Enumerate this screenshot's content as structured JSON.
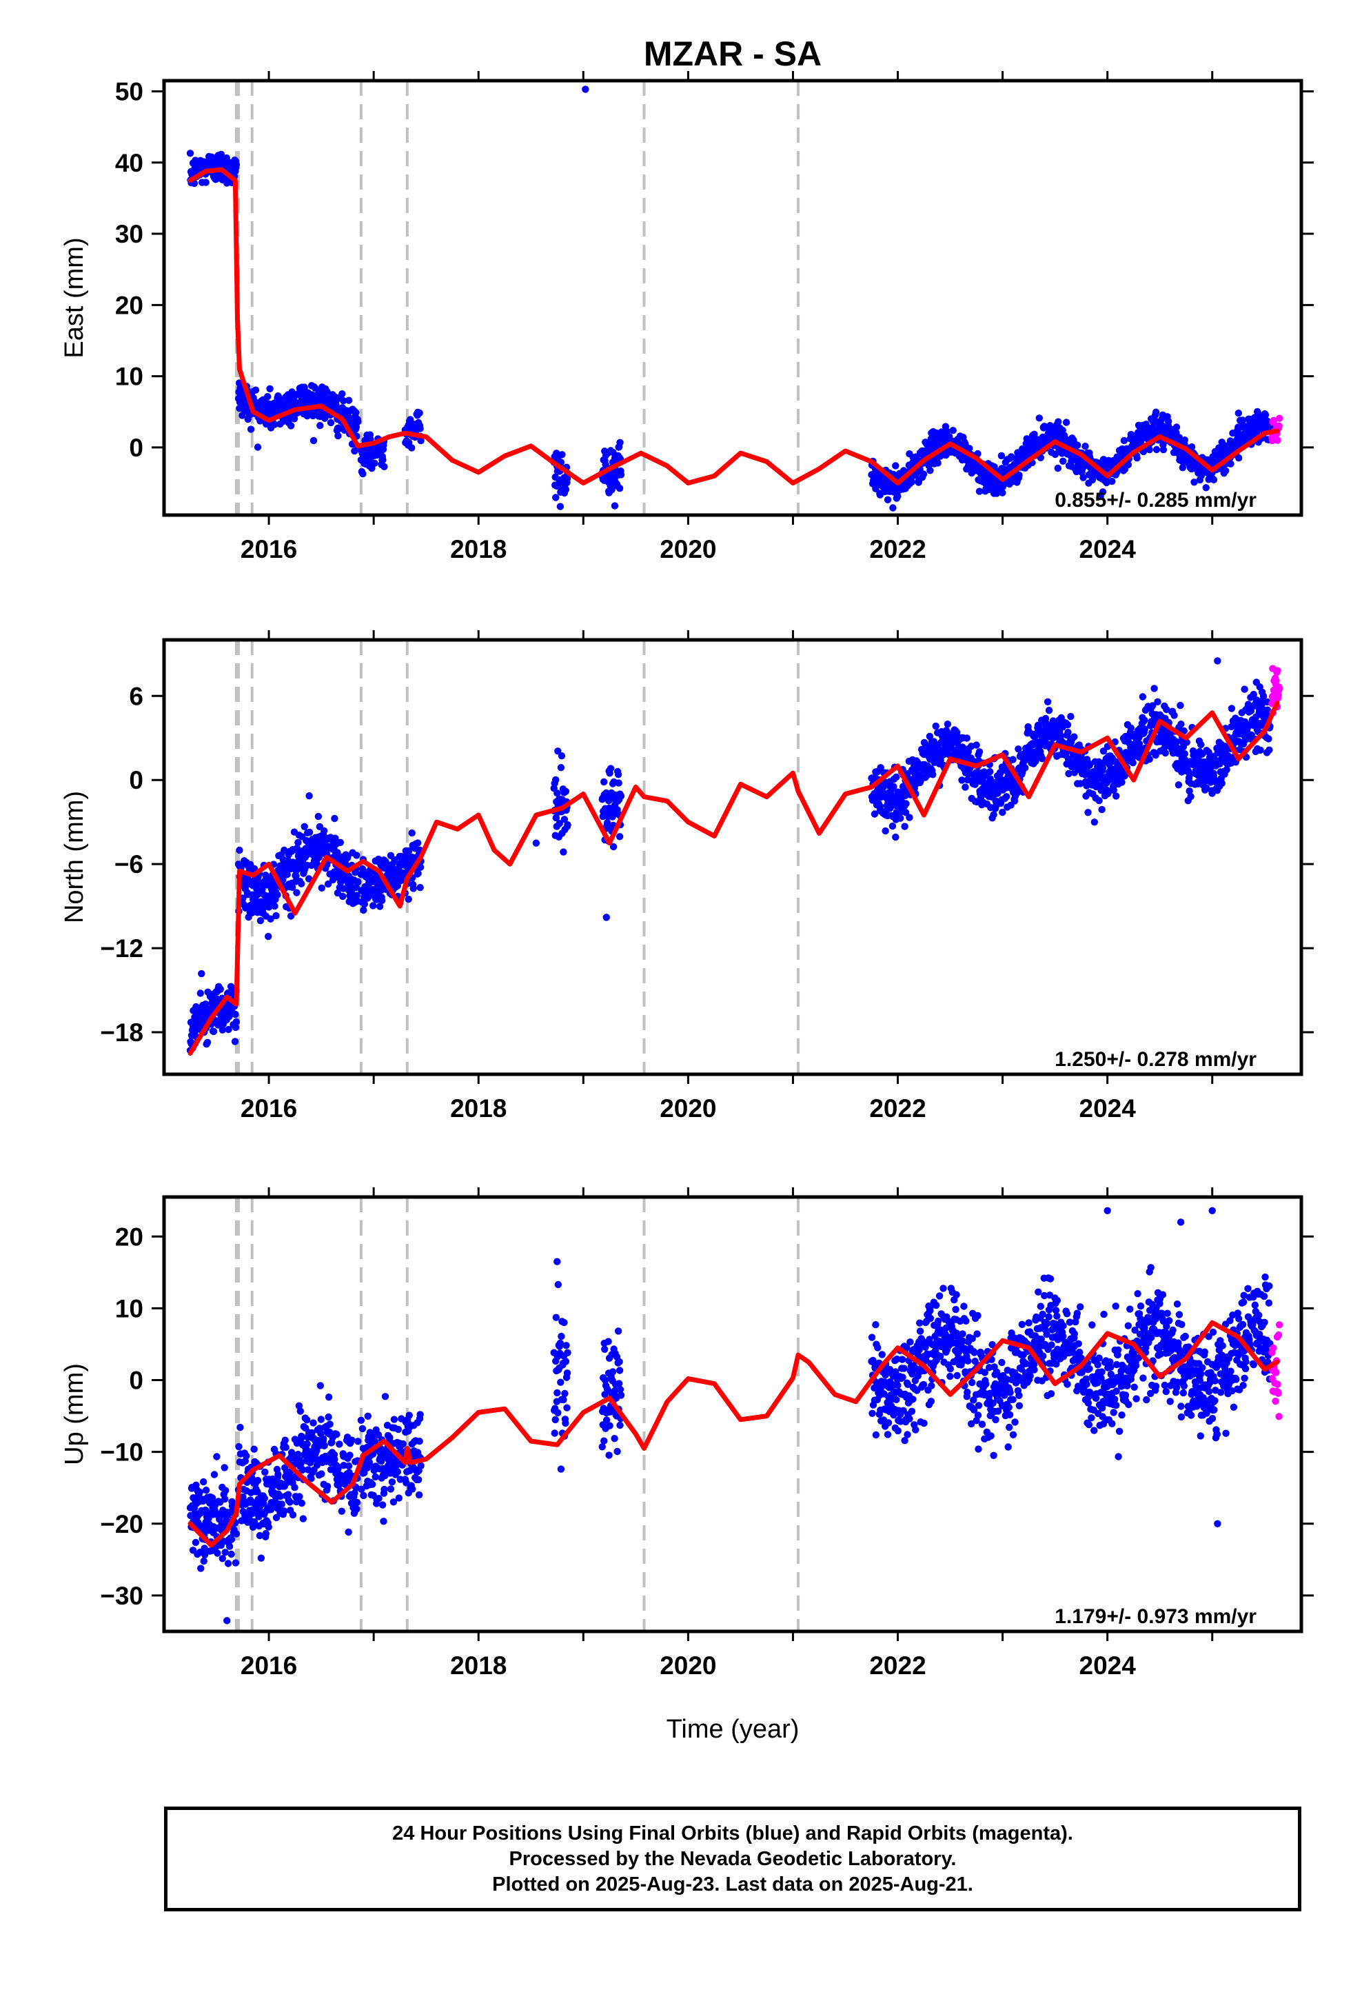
{
  "title": "MZAR - SA",
  "xlabel": "Time (year)",
  "colors": {
    "final": "#0000ff",
    "rapid": "#ff00ff",
    "model": "#ff0000",
    "breaks": "#c0c0c0"
  },
  "footer": {
    "line1": "24 Hour Positions Using Final Orbits (blue) and Rapid Orbits (magenta).",
    "line2": "Processed by the Nevada Geodetic Laboratory.",
    "line3": "Plotted on 2025-Aug-23. Last data on 2025-Aug-21."
  },
  "chart_data": [
    {
      "type": "scatter",
      "component": "east",
      "ylabel": "East (mm)",
      "xlim": [
        2015.0,
        2025.85
      ],
      "ylim": [
        -9.5,
        51.5
      ],
      "yticks": [
        0,
        10,
        20,
        30,
        40,
        50
      ],
      "xticks": [
        2016,
        2018,
        2020,
        2022,
        2024
      ],
      "rate_label": "0.855+/- 0.285 mm/yr",
      "break_lines": [
        2015.69,
        2015.71,
        2015.84,
        2016.88,
        2017.32,
        2019.58,
        2021.05
      ],
      "model_line": {
        "name": "model",
        "x": [
          2015.25,
          2015.4,
          2015.55,
          2015.68,
          2015.7,
          2015.72,
          2015.85,
          2016.0,
          2016.25,
          2016.5,
          2016.7,
          2016.85,
          2017.0,
          2017.15,
          2017.3,
          2017.5,
          2017.75,
          2018.0,
          2018.25,
          2018.5,
          2018.75,
          2019.0,
          2019.25,
          2019.55,
          2019.8,
          2020.0,
          2020.25,
          2020.5,
          2020.75,
          2021.0,
          2021.25,
          2021.5,
          2021.75,
          2022.0,
          2022.25,
          2022.5,
          2022.75,
          2023.0,
          2023.25,
          2023.5,
          2023.75,
          2024.0,
          2024.25,
          2024.5,
          2024.75,
          2025.0,
          2025.25,
          2025.5,
          2025.62
        ],
        "y": [
          37.5,
          38.8,
          39.0,
          37.5,
          18.0,
          11.0,
          5.0,
          3.8,
          5.3,
          5.8,
          4.0,
          0.2,
          0.6,
          1.5,
          2.0,
          1.5,
          -1.8,
          -3.5,
          -1.2,
          0.2,
          -2.5,
          -5.0,
          -3.0,
          -0.8,
          -2.6,
          -5.0,
          -4.0,
          -0.8,
          -2.0,
          -5.0,
          -3.0,
          -0.5,
          -2.0,
          -5.0,
          -1.8,
          0.5,
          -1.5,
          -4.5,
          -1.8,
          0.8,
          -1.0,
          -4.0,
          -0.7,
          1.5,
          -0.2,
          -3.2,
          -0.5,
          2.0,
          2.3
        ]
      },
      "final_segments": [
        {
          "x0": 2015.25,
          "x1": 2015.69,
          "center": 38.5,
          "amp": 1.0,
          "noise": 1.2,
          "start": 37.5,
          "end": 39.0
        },
        {
          "x0": 2015.71,
          "x1": 2016.85,
          "center": 4.5,
          "amp": 1.5,
          "noise": 1.5,
          "start": 10.5,
          "end": 3.0
        },
        {
          "x0": 2016.88,
          "x1": 2017.1,
          "center": -0.5,
          "amp": 0.5,
          "noise": 1.3,
          "start": -1.0,
          "end": 0.5
        },
        {
          "x0": 2017.3,
          "x1": 2017.45,
          "center": 2.3,
          "amp": 0.5,
          "noise": 1.2,
          "start": 2.3,
          "end": 2.0
        },
        {
          "x0": 2018.72,
          "x1": 2018.85,
          "center": -3.0,
          "amp": 1.0,
          "noise": 2.0,
          "start": -2.0,
          "end": -4.0
        },
        {
          "x0": 2019.18,
          "x1": 2019.36,
          "center": -3.5,
          "amp": 1.0,
          "noise": 1.7,
          "start": -3.0,
          "end": -4.0
        },
        {
          "x0": 2021.75,
          "x1": 2025.55,
          "center": -1.0,
          "amp": 2.8,
          "noise": 1.2,
          "start": -4.5,
          "end": 2.0
        }
      ],
      "outliers": [
        {
          "x": 2019.02,
          "y": 50.3
        },
        {
          "x": 2018.78,
          "y": -8.3
        },
        {
          "x": 2019.3,
          "y": -8.2
        }
      ],
      "rapid_points": {
        "x0": 2025.57,
        "x1": 2025.64,
        "center": 2.5,
        "noise": 1.2
      }
    },
    {
      "type": "scatter",
      "component": "north",
      "ylabel": "North (mm)",
      "xlim": [
        2015.0,
        2025.85
      ],
      "ylim": [
        -21.0,
        10.0
      ],
      "yticks": [
        -18,
        -12,
        -6,
        0,
        6
      ],
      "xticks": [
        2016,
        2018,
        2020,
        2022,
        2024
      ],
      "rate_label": "1.250+/- 0.278 mm/yr",
      "break_lines": [
        2015.69,
        2015.71,
        2015.84,
        2016.88,
        2017.32,
        2019.58,
        2021.05
      ],
      "model_line": {
        "name": "model",
        "x": [
          2015.25,
          2015.45,
          2015.6,
          2015.69,
          2015.72,
          2015.85,
          2016.0,
          2016.25,
          2016.55,
          2016.75,
          2016.9,
          2017.05,
          2017.25,
          2017.32,
          2017.45,
          2017.6,
          2017.8,
          2018.0,
          2018.15,
          2018.3,
          2018.55,
          2018.8,
          2019.0,
          2019.25,
          2019.5,
          2019.58,
          2019.8,
          2020.0,
          2020.25,
          2020.5,
          2020.75,
          2021.0,
          2021.05,
          2021.25,
          2021.5,
          2021.75,
          2022.0,
          2022.25,
          2022.5,
          2022.75,
          2023.0,
          2023.25,
          2023.5,
          2023.75,
          2024.0,
          2024.25,
          2024.5,
          2024.75,
          2025.0,
          2025.25,
          2025.5,
          2025.62
        ],
        "y": [
          -19.5,
          -17.0,
          -15.5,
          -16.0,
          -6.5,
          -6.8,
          -6.0,
          -9.5,
          -5.5,
          -6.5,
          -5.8,
          -6.5,
          -9.0,
          -7.0,
          -5.5,
          -3.0,
          -3.5,
          -2.5,
          -5.0,
          -6.0,
          -2.5,
          -2.0,
          -1.0,
          -4.5,
          -0.5,
          -1.2,
          -1.5,
          -3.0,
          -4.0,
          -0.3,
          -1.2,
          0.5,
          -0.8,
          -3.8,
          -1.0,
          -0.5,
          1.0,
          -2.5,
          1.5,
          1.0,
          1.8,
          -1.2,
          2.5,
          2.0,
          3.0,
          0.0,
          4.2,
          3.0,
          4.8,
          1.5,
          3.5,
          5.5
        ]
      },
      "final_segments": [
        {
          "x0": 2015.25,
          "x1": 2015.69,
          "center": -17.0,
          "amp": 1.0,
          "noise": 1.0,
          "start": -19.5,
          "end": -16.0
        },
        {
          "x0": 2015.71,
          "x1": 2016.85,
          "center": -7.0,
          "amp": 1.6,
          "noise": 1.1,
          "start": -6.5,
          "end": -6.0
        },
        {
          "x0": 2016.88,
          "x1": 2017.28,
          "center": -6.5,
          "amp": 1.0,
          "noise": 1.0,
          "start": -6.0,
          "end": -8.0
        },
        {
          "x0": 2017.3,
          "x1": 2017.45,
          "center": -6.5,
          "amp": 0.5,
          "noise": 1.2,
          "start": -8.0,
          "end": -5.5
        },
        {
          "x0": 2018.72,
          "x1": 2018.85,
          "center": -1.5,
          "amp": 0.8,
          "noise": 1.5,
          "start": -2.5,
          "end": -1.5
        },
        {
          "x0": 2019.18,
          "x1": 2019.36,
          "center": -2.0,
          "amp": 1.0,
          "noise": 1.6,
          "start": -2.0,
          "end": -3.0
        },
        {
          "x0": 2021.75,
          "x1": 2025.55,
          "center": 1.0,
          "amp": 1.8,
          "noise": 1.1,
          "start": -0.5,
          "end": 4.5
        }
      ],
      "outliers": [
        {
          "x": 2019.22,
          "y": -9.8
        },
        {
          "x": 2018.55,
          "y": -4.5
        },
        {
          "x": 2025.05,
          "y": 8.5
        }
      ],
      "rapid_points": {
        "x0": 2025.57,
        "x1": 2025.64,
        "center": 6.2,
        "noise": 1.2
      }
    },
    {
      "type": "scatter",
      "component": "up",
      "ylabel": "Up (mm)",
      "xlim": [
        2015.0,
        2025.85
      ],
      "ylim": [
        -35.0,
        25.5
      ],
      "yticks": [
        -30,
        -20,
        -10,
        0,
        10,
        20
      ],
      "xticks": [
        2016,
        2018,
        2020,
        2022,
        2024
      ],
      "rate_label": "1.179+/- 0.973 mm/yr",
      "break_lines": [
        2015.69,
        2015.71,
        2015.84,
        2016.88,
        2017.32,
        2019.58,
        2021.05
      ],
      "model_line": {
        "name": "model",
        "x": [
          2015.25,
          2015.45,
          2015.6,
          2015.69,
          2015.72,
          2015.85,
          2016.1,
          2016.35,
          2016.6,
          2016.8,
          2016.9,
          2017.1,
          2017.3,
          2017.32,
          2017.35,
          2017.5,
          2017.75,
          2018.0,
          2018.25,
          2018.5,
          2018.75,
          2019.0,
          2019.25,
          2019.5,
          2019.58,
          2019.8,
          2020.0,
          2020.25,
          2020.5,
          2020.75,
          2021.0,
          2021.05,
          2021.15,
          2021.4,
          2021.6,
          2021.85,
          2022.0,
          2022.25,
          2022.5,
          2022.75,
          2023.0,
          2023.25,
          2023.5,
          2023.75,
          2024.0,
          2024.25,
          2024.5,
          2024.75,
          2025.0,
          2025.25,
          2025.5,
          2025.62
        ],
        "y": [
          -20.0,
          -23.0,
          -21.0,
          -18.5,
          -14.5,
          -12.5,
          -10.5,
          -14.0,
          -17.0,
          -14.5,
          -10.5,
          -8.5,
          -11.5,
          -9.5,
          -11.5,
          -11.0,
          -8.0,
          -4.5,
          -4.0,
          -8.5,
          -9.0,
          -4.5,
          -2.5,
          -7.5,
          -9.5,
          -3.0,
          0.2,
          -0.5,
          -5.5,
          -5.0,
          0.3,
          3.5,
          2.5,
          -2.0,
          -3.0,
          2.0,
          4.5,
          2.0,
          -2.0,
          1.5,
          5.5,
          4.5,
          -0.5,
          2.0,
          6.5,
          5.0,
          0.5,
          3.0,
          8.0,
          6.0,
          1.5,
          2.5
        ]
      },
      "final_segments": [
        {
          "x0": 2015.25,
          "x1": 2015.69,
          "center": -22.0,
          "amp": 1.5,
          "noise": 3.2,
          "start": -20.0,
          "end": -19.0
        },
        {
          "x0": 2015.71,
          "x1": 2016.85,
          "center": -13.0,
          "amp": 3.0,
          "noise": 3.3,
          "start": -14.0,
          "end": -11.0
        },
        {
          "x0": 2016.88,
          "x1": 2017.28,
          "center": -9.5,
          "amp": 1.0,
          "noise": 3.3,
          "start": -10.0,
          "end": -11.0
        },
        {
          "x0": 2017.3,
          "x1": 2017.45,
          "center": -11.0,
          "amp": 0.5,
          "noise": 3.0,
          "start": -11.0,
          "end": -11.0
        },
        {
          "x0": 2018.72,
          "x1": 2018.85,
          "center": 0.0,
          "amp": 2.0,
          "noise": 7.0,
          "start": -2.0,
          "end": 0.0
        },
        {
          "x0": 2019.18,
          "x1": 2019.36,
          "center": -4.0,
          "amp": 2.0,
          "noise": 5.5,
          "start": -3.0,
          "end": -5.0
        },
        {
          "x0": 2021.75,
          "x1": 2025.55,
          "center": 2.0,
          "amp": 4.0,
          "noise": 3.8,
          "start": 1.0,
          "end": 4.0
        }
      ],
      "outliers": [
        {
          "x": 2024.0,
          "y": 23.6
        },
        {
          "x": 2025.0,
          "y": 23.6
        },
        {
          "x": 2024.7,
          "y": 22.0
        },
        {
          "x": 2025.05,
          "y": -20.0
        },
        {
          "x": 2015.6,
          "y": -33.5
        },
        {
          "x": 2018.75,
          "y": 16.5
        }
      ],
      "rapid_points": {
        "x0": 2025.57,
        "x1": 2025.64,
        "center": 0.0,
        "noise": 3.5
      }
    }
  ]
}
